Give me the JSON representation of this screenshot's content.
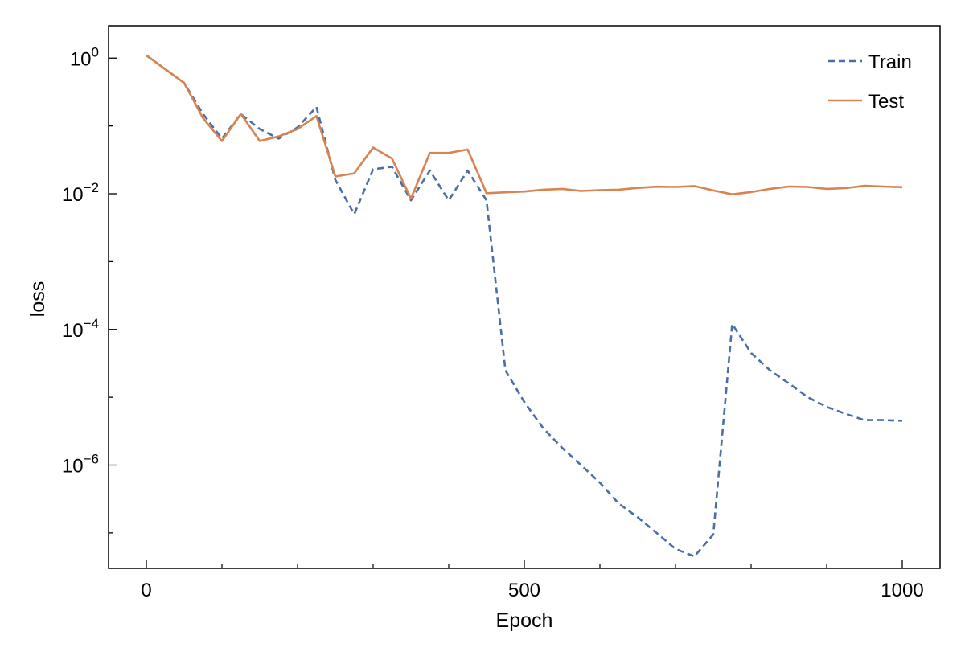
{
  "chart_data": {
    "type": "line",
    "xlabel": "Epoch",
    "ylabel": "loss",
    "y_scale": "log10",
    "xlim": [
      -50,
      1050
    ],
    "ylim": [
      3e-08,
      3
    ],
    "grid": false,
    "legend_position": "top-right",
    "x_ticks": [
      {
        "value": 0,
        "label": "0"
      },
      {
        "value": 500,
        "label": "500"
      },
      {
        "value": 1000,
        "label": "1000"
      }
    ],
    "x_minor_ticks": [
      100,
      200,
      300,
      400,
      600,
      700,
      800,
      900
    ],
    "y_ticks": [
      {
        "value": 1,
        "base": "10",
        "exp": "0"
      },
      {
        "value": 0.01,
        "base": "10",
        "exp": "−2"
      },
      {
        "value": 0.0001,
        "base": "10",
        "exp": "−4"
      },
      {
        "value": 1e-06,
        "base": "10",
        "exp": "−6"
      }
    ],
    "series": [
      {
        "name": "Train",
        "color": "#4a6fa8",
        "dash": true,
        "x": [
          0,
          50,
          75,
          100,
          125,
          150,
          175,
          200,
          225,
          250,
          275,
          300,
          325,
          350,
          375,
          400,
          425,
          450,
          475,
          500,
          525,
          550,
          575,
          600,
          625,
          650,
          675,
          700,
          725,
          750,
          775,
          800,
          825,
          850,
          875,
          900,
          925,
          950,
          975,
          1000
        ],
        "values": [
          1.1,
          0.43,
          0.15,
          0.065,
          0.15,
          0.09,
          0.065,
          0.095,
          0.19,
          0.016,
          0.005,
          0.023,
          0.025,
          0.008,
          0.022,
          0.008,
          0.022,
          0.008,
          2.5e-05,
          8.5e-06,
          3.5e-06,
          1.8e-06,
          1e-06,
          5.5e-07,
          2.7e-07,
          1.7e-07,
          1e-07,
          5.8e-08,
          4.5e-08,
          9.5e-08,
          0.00012,
          4.5e-05,
          2.5e-05,
          1.6e-05,
          1e-05,
          7.2e-06,
          5.7e-06,
          4.6e-06,
          4.6e-06,
          4.5e-06
        ]
      },
      {
        "name": "Test",
        "color": "#d98350",
        "dash": false,
        "x": [
          0,
          50,
          75,
          100,
          125,
          150,
          175,
          200,
          225,
          250,
          275,
          300,
          325,
          350,
          375,
          400,
          425,
          450,
          475,
          500,
          525,
          550,
          575,
          600,
          625,
          650,
          675,
          700,
          725,
          750,
          775,
          800,
          825,
          850,
          875,
          900,
          925,
          950,
          975,
          1000
        ],
        "values": [
          1.1,
          0.43,
          0.13,
          0.06,
          0.15,
          0.06,
          0.07,
          0.09,
          0.14,
          0.018,
          0.02,
          0.048,
          0.033,
          0.0085,
          0.04,
          0.04,
          0.045,
          0.0102,
          0.0105,
          0.0108,
          0.0115,
          0.0118,
          0.011,
          0.0113,
          0.0115,
          0.0122,
          0.0127,
          0.0126,
          0.013,
          0.0112,
          0.0098,
          0.0106,
          0.0118,
          0.0128,
          0.0126,
          0.0118,
          0.0121,
          0.0131,
          0.0128,
          0.0125
        ]
      }
    ]
  }
}
